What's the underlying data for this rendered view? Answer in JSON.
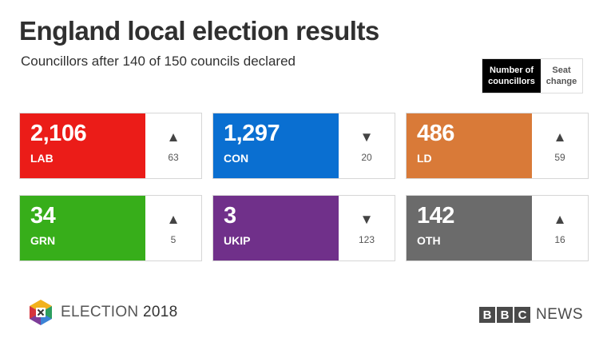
{
  "header": {
    "title": "England local election results",
    "subtitle": "Councillors after 140 of 150 councils declared"
  },
  "toggle": {
    "active_label": "Number of councillors",
    "inactive_label": "Seat change"
  },
  "parties": [
    {
      "count": "2,106",
      "party": "LAB",
      "direction": "up",
      "change": "63",
      "color": "#eb1c18"
    },
    {
      "count": "1,297",
      "party": "CON",
      "direction": "down",
      "change": "20",
      "color": "#0a6fd1"
    },
    {
      "count": "486",
      "party": "LD",
      "direction": "up",
      "change": "59",
      "color": "#d97a38"
    },
    {
      "count": "34",
      "party": "GRN",
      "direction": "up",
      "change": "5",
      "color": "#37ae1a"
    },
    {
      "count": "3",
      "party": "UKIP",
      "direction": "down",
      "change": "123",
      "color": "#70308a"
    },
    {
      "count": "142",
      "party": "OTH",
      "direction": "up",
      "change": "16",
      "color": "#6b6b6b"
    }
  ],
  "footer": {
    "election_word": "ELECTION",
    "election_year": "2018",
    "bbc_letters": [
      "B",
      "B",
      "C"
    ],
    "news_word": "NEWS"
  },
  "icons": {
    "up": "triangle-up-icon",
    "down": "triangle-down-icon",
    "election_logo": "election-cube-logo-icon"
  }
}
